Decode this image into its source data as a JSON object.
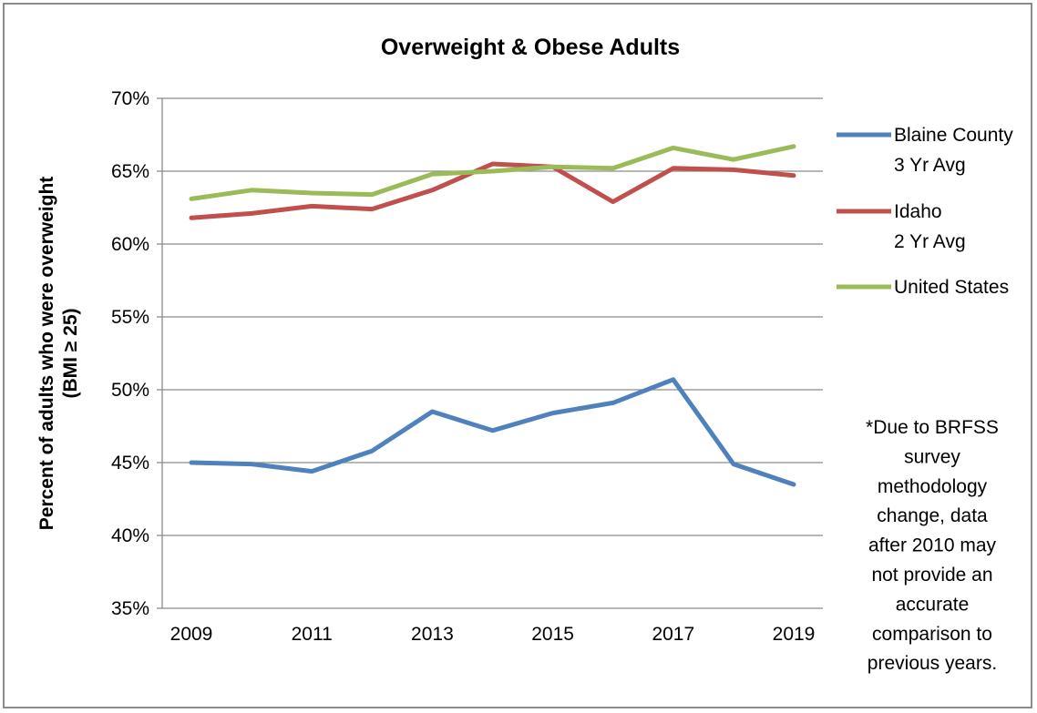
{
  "chart_data": {
    "type": "line",
    "title": "Overweight & Obese Adults",
    "ylabel_lines": [
      "Percent of adults who were overweight",
      "(BMI ≥ 25)"
    ],
    "xlabel": "",
    "ylim": [
      35,
      70
    ],
    "y_ticks": [
      35,
      40,
      45,
      50,
      55,
      60,
      65,
      70
    ],
    "y_tick_suffix": "%",
    "x": [
      2009,
      2010,
      2011,
      2012,
      2013,
      2014,
      2015,
      2016,
      2017,
      2018,
      2019
    ],
    "x_tick_labels": [
      "2009",
      "2011",
      "2013",
      "2015",
      "2017",
      "2019"
    ],
    "grid": "horizontal",
    "legend_position": "right",
    "series": [
      {
        "name_lines": [
          "Blaine County",
          "3 Yr Avg"
        ],
        "color": "#4f81bd",
        "values": [
          45.0,
          44.9,
          44.4,
          45.8,
          48.5,
          47.2,
          48.4,
          49.1,
          50.7,
          44.9,
          43.5
        ]
      },
      {
        "name_lines": [
          "Idaho",
          "2 Yr Avg"
        ],
        "color": "#c0504d",
        "values": [
          61.8,
          62.1,
          62.6,
          62.4,
          63.7,
          65.5,
          65.3,
          62.9,
          65.2,
          65.1,
          64.7
        ]
      },
      {
        "name_lines": [
          "United States"
        ],
        "color": "#9bbb59",
        "values": [
          63.1,
          63.7,
          63.5,
          63.4,
          64.8,
          65.0,
          65.3,
          65.2,
          66.6,
          65.8,
          66.7
        ]
      }
    ],
    "note_lines": [
      "*Due to BRFSS",
      "survey",
      "methodology",
      "change, data",
      "after 2010 may",
      "not provide an",
      "accurate",
      "comparison to",
      "previous years."
    ]
  }
}
